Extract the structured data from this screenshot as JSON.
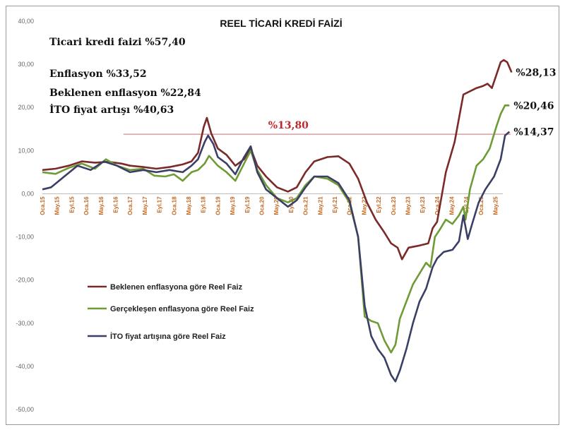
{
  "chart_data": {
    "type": "line",
    "title": "REEL TİCARİ KREDİ FAİZİ",
    "ylim": [
      -50,
      40
    ],
    "yticks": [
      "40,00",
      "30,00",
      "20,00",
      "10,00",
      "0,00",
      "-10,00",
      "-20,00",
      "-30,00",
      "-40,00",
      "-50,00"
    ],
    "ytick_values": [
      40,
      30,
      20,
      10,
      0,
      -10,
      -20,
      -30,
      -40,
      -50
    ],
    "x_tick_labels": [
      "Oca.15",
      "May.15",
      "Eyl.15",
      "Oca.16",
      "May.16",
      "Eyl.16",
      "Oca.17",
      "May.17",
      "Eyl.17",
      "Oca.18",
      "May.18",
      "Eyl.18",
      "Oca.19",
      "May.19",
      "Eyl.19",
      "Oca.20",
      "May.20",
      "Eyl.20",
      "Oca.21",
      "May.21",
      "Eyl.21",
      "Oca.22",
      "May.22",
      "Eyl.22",
      "Oca.23",
      "May.23",
      "Eyl.23",
      "Oca.24",
      "May.24",
      "Eyl.24",
      "Oca.25",
      "May.25"
    ],
    "x_start": 2015.0,
    "x_end": 2025.5,
    "grid": false,
    "legend_position": "lower-left",
    "series": [
      {
        "name": "Beklenen enflasyona göre Reel Faiz",
        "color": "#7b2a2a",
        "end_label": "%28,13",
        "points": [
          [
            2015.0,
            5.5
          ],
          [
            2015.3,
            5.8
          ],
          [
            2015.6,
            6.5
          ],
          [
            2015.9,
            7.5
          ],
          [
            2016.2,
            7.2
          ],
          [
            2016.5,
            7.4
          ],
          [
            2016.8,
            7.0
          ],
          [
            2017.0,
            6.5
          ],
          [
            2017.3,
            6.2
          ],
          [
            2017.6,
            5.8
          ],
          [
            2017.9,
            6.2
          ],
          [
            2018.2,
            6.8
          ],
          [
            2018.4,
            7.5
          ],
          [
            2018.55,
            9.5
          ],
          [
            2018.68,
            15.5
          ],
          [
            2018.75,
            17.6
          ],
          [
            2018.85,
            14.0
          ],
          [
            2019.0,
            10.5
          ],
          [
            2019.2,
            9.0
          ],
          [
            2019.4,
            6.5
          ],
          [
            2019.6,
            8.0
          ],
          [
            2019.75,
            10.5
          ],
          [
            2019.9,
            6.5
          ],
          [
            2020.1,
            4.0
          ],
          [
            2020.35,
            1.5
          ],
          [
            2020.6,
            0.5
          ],
          [
            2020.8,
            1.5
          ],
          [
            2021.0,
            5.0
          ],
          [
            2021.2,
            7.5
          ],
          [
            2021.5,
            8.5
          ],
          [
            2021.75,
            8.7
          ],
          [
            2022.0,
            7.0
          ],
          [
            2022.2,
            3.5
          ],
          [
            2022.4,
            -2.0
          ],
          [
            2022.6,
            -6.0
          ],
          [
            2022.8,
            -9.0
          ],
          [
            2022.95,
            -11.5
          ],
          [
            2023.1,
            -12.5
          ],
          [
            2023.2,
            -15.2
          ],
          [
            2023.35,
            -12.5
          ],
          [
            2023.6,
            -12.0
          ],
          [
            2023.8,
            -11.5
          ],
          [
            2023.9,
            -8.0
          ],
          [
            2024.0,
            -6.5
          ],
          [
            2024.2,
            5.0
          ],
          [
            2024.4,
            12.0
          ],
          [
            2024.6,
            23.0
          ],
          [
            2024.9,
            24.5
          ],
          [
            2025.05,
            25.0
          ],
          [
            2025.15,
            25.5
          ],
          [
            2025.25,
            24.5
          ],
          [
            2025.35,
            27.5
          ],
          [
            2025.45,
            30.5
          ],
          [
            2025.52,
            31.0
          ],
          [
            2025.6,
            30.5
          ],
          [
            2025.7,
            28.13
          ]
        ]
      },
      {
        "name": "Gerçekleşen enflasyona göre Reel Faiz",
        "color": "#6f9b36",
        "end_label": "%20,46",
        "points": [
          [
            2015.0,
            5.0
          ],
          [
            2015.3,
            4.6
          ],
          [
            2015.6,
            6.0
          ],
          [
            2015.9,
            7.0
          ],
          [
            2016.2,
            5.8
          ],
          [
            2016.45,
            8.0
          ],
          [
            2016.7,
            6.5
          ],
          [
            2017.0,
            5.5
          ],
          [
            2017.3,
            5.8
          ],
          [
            2017.55,
            4.2
          ],
          [
            2017.8,
            4.0
          ],
          [
            2018.0,
            4.5
          ],
          [
            2018.2,
            3.0
          ],
          [
            2018.4,
            5.0
          ],
          [
            2018.55,
            5.5
          ],
          [
            2018.7,
            7.0
          ],
          [
            2018.8,
            8.8
          ],
          [
            2019.0,
            6.5
          ],
          [
            2019.2,
            5.0
          ],
          [
            2019.4,
            3.0
          ],
          [
            2019.6,
            7.0
          ],
          [
            2019.75,
            10.0
          ],
          [
            2019.9,
            5.5
          ],
          [
            2020.1,
            2.0
          ],
          [
            2020.35,
            -1.0
          ],
          [
            2020.6,
            -2.0
          ],
          [
            2020.8,
            -1.0
          ],
          [
            2021.0,
            2.0
          ],
          [
            2021.2,
            4.0
          ],
          [
            2021.5,
            3.5
          ],
          [
            2021.75,
            2.0
          ],
          [
            2022.0,
            -2.0
          ],
          [
            2022.2,
            -10.0
          ],
          [
            2022.35,
            -28.5
          ],
          [
            2022.5,
            -29.5
          ],
          [
            2022.65,
            -30.0
          ],
          [
            2022.8,
            -34.0
          ],
          [
            2022.95,
            -36.8
          ],
          [
            2023.05,
            -35.0
          ],
          [
            2023.15,
            -29.0
          ],
          [
            2023.3,
            -25.0
          ],
          [
            2023.45,
            -21.0
          ],
          [
            2023.6,
            -18.5
          ],
          [
            2023.75,
            -16.0
          ],
          [
            2023.85,
            -17.0
          ],
          [
            2023.95,
            -10.0
          ],
          [
            2024.05,
            -8.5
          ],
          [
            2024.2,
            -6.0
          ],
          [
            2024.35,
            -7.0
          ],
          [
            2024.5,
            -5.0
          ],
          [
            2024.6,
            -3.0
          ],
          [
            2024.65,
            -6.0
          ],
          [
            2024.75,
            1.0
          ],
          [
            2024.9,
            6.5
          ],
          [
            2025.05,
            8.0
          ],
          [
            2025.2,
            10.5
          ],
          [
            2025.35,
            15.5
          ],
          [
            2025.45,
            18.5
          ],
          [
            2025.55,
            20.5
          ],
          [
            2025.65,
            20.46
          ]
        ]
      },
      {
        "name": "İTO fiyat artışına göre Reel Faiz",
        "color": "#3b3f66",
        "end_label": "%14,37",
        "points": [
          [
            2015.0,
            1.0
          ],
          [
            2015.2,
            1.5
          ],
          [
            2015.5,
            4.0
          ],
          [
            2015.8,
            6.5
          ],
          [
            2016.1,
            5.5
          ],
          [
            2016.4,
            7.5
          ],
          [
            2016.7,
            6.5
          ],
          [
            2017.0,
            5.0
          ],
          [
            2017.3,
            5.5
          ],
          [
            2017.6,
            5.0
          ],
          [
            2017.9,
            5.5
          ],
          [
            2018.2,
            5.0
          ],
          [
            2018.4,
            6.5
          ],
          [
            2018.55,
            8.0
          ],
          [
            2018.7,
            12.0
          ],
          [
            2018.78,
            13.5
          ],
          [
            2018.9,
            11.5
          ],
          [
            2019.0,
            8.5
          ],
          [
            2019.2,
            7.0
          ],
          [
            2019.4,
            4.5
          ],
          [
            2019.6,
            8.5
          ],
          [
            2019.75,
            11.0
          ],
          [
            2019.9,
            5.0
          ],
          [
            2020.1,
            1.0
          ],
          [
            2020.35,
            -1.0
          ],
          [
            2020.6,
            -3.0
          ],
          [
            2020.8,
            -1.5
          ],
          [
            2021.0,
            1.5
          ],
          [
            2021.2,
            4.0
          ],
          [
            2021.5,
            4.0
          ],
          [
            2021.75,
            2.5
          ],
          [
            2022.0,
            -1.5
          ],
          [
            2022.2,
            -10.0
          ],
          [
            2022.35,
            -26.0
          ],
          [
            2022.5,
            -33.0
          ],
          [
            2022.65,
            -36.0
          ],
          [
            2022.8,
            -38.0
          ],
          [
            2022.95,
            -42.0
          ],
          [
            2023.05,
            -43.5
          ],
          [
            2023.15,
            -41.0
          ],
          [
            2023.3,
            -36.0
          ],
          [
            2023.45,
            -30.0
          ],
          [
            2023.6,
            -25.0
          ],
          [
            2023.75,
            -22.0
          ],
          [
            2023.9,
            -17.0
          ],
          [
            2024.0,
            -15.0
          ],
          [
            2024.15,
            -13.5
          ],
          [
            2024.35,
            -13.0
          ],
          [
            2024.5,
            -11.0
          ],
          [
            2024.6,
            -5.0
          ],
          [
            2024.7,
            -10.5
          ],
          [
            2024.8,
            -7.0
          ],
          [
            2024.95,
            -2.0
          ],
          [
            2025.1,
            1.0
          ],
          [
            2025.3,
            4.0
          ],
          [
            2025.45,
            8.0
          ],
          [
            2025.55,
            13.5
          ],
          [
            2025.65,
            14.37
          ]
        ]
      }
    ],
    "reference_line": {
      "value": 13.8,
      "label": "%13,80",
      "color": "#d9898d",
      "x_start": 2016.85
    },
    "annotations": {
      "line1": "Ticari kredi faizi %57,40",
      "line2": "Enflasyon %33,52",
      "line3": "Beklenen enflasyon %22,84",
      "line4": "İTO fiyat artışı %40,63"
    }
  }
}
